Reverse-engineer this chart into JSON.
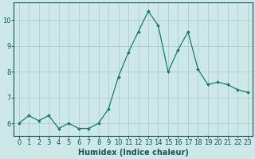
{
  "x": [
    0,
    1,
    2,
    3,
    4,
    5,
    6,
    7,
    8,
    9,
    10,
    11,
    12,
    13,
    14,
    15,
    16,
    17,
    18,
    19,
    20,
    21,
    22,
    23
  ],
  "y": [
    6.0,
    6.3,
    6.1,
    6.3,
    5.8,
    6.0,
    5.8,
    5.8,
    6.0,
    6.55,
    7.8,
    8.75,
    9.55,
    10.35,
    9.8,
    8.0,
    8.85,
    9.55,
    8.1,
    7.5,
    7.6,
    7.5,
    7.3,
    7.2
  ],
  "line_color": "#1a7a6e",
  "marker": "D",
  "marker_size": 2.0,
  "bg_color": "#cce8e8",
  "grid_color": "#b0cccc",
  "axis_color": "#1a5555",
  "xlabel": "Humidex (Indice chaleur)",
  "xlabel_fontsize": 7,
  "tick_fontsize": 6,
  "ylim": [
    5.5,
    10.7
  ],
  "xlim": [
    -0.5,
    23.5
  ],
  "yticks": [
    6,
    7,
    8,
    9,
    10
  ],
  "xticks": [
    0,
    1,
    2,
    3,
    4,
    5,
    6,
    7,
    8,
    9,
    10,
    11,
    12,
    13,
    14,
    15,
    16,
    17,
    18,
    19,
    20,
    21,
    22,
    23
  ]
}
